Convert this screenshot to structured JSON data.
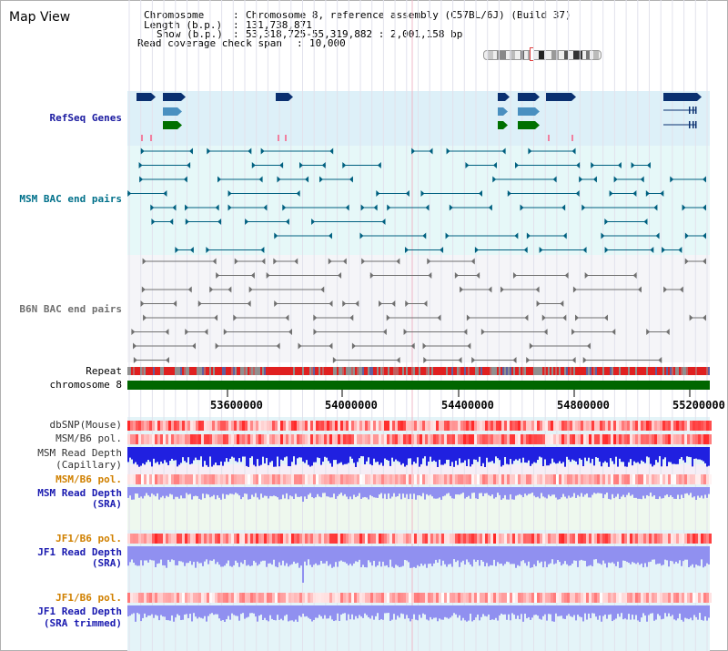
{
  "window": {
    "title": "Map View"
  },
  "header": {
    "chromosome_key": "Chromosome",
    "chromosome_value": "Chromosome 8, reference assembly (C57BL/6J) (Build 37)",
    "length_key": "Length (b.p.)",
    "length_value": "131,738,871",
    "show_key": "Show (b.p.)",
    "show_value": "53,318,725-55,319,882 : 2,001,158 bp",
    "coverage_key": "Read coverage check span",
    "coverage_value": "10,000"
  },
  "tracks": {
    "refseq": "RefSeq Genes",
    "msm_bac": "MSM BAC end pairs",
    "b6n_bac": "B6N BAC end pairs",
    "repeat": "Repeat",
    "chromosome": "chromosome 8",
    "dbsnp": "dbSNP(Mouse)",
    "msm_b6_pol_1": "MSM/B6 pol.",
    "msm_read_depth_cap_1": "MSM Read Depth",
    "msm_read_depth_cap_2": "(Capillary)",
    "msm_b6_pol_2": "MSM/B6 pol.",
    "msm_read_depth_sra_1": "MSM Read Depth",
    "msm_read_depth_sra_2": "(SRA)",
    "jf1_b6_pol_1": "JF1/B6 pol.",
    "jf1_read_depth_sra_1": "JF1 Read Depth",
    "jf1_read_depth_sra_2": "(SRA)",
    "jf1_b6_pol_2": "JF1/B6 pol.",
    "jf1_read_depth_trim_1": "JF1 Read Depth",
    "jf1_read_depth_trim_2": "(SRA trimmed)"
  },
  "axis": {
    "ticks": [
      "53600000",
      "54000000",
      "54400000",
      "54800000",
      "55200000"
    ]
  },
  "colors": {
    "refseq_bg": "#ddf0f8",
    "msm_bg": "#e6f8f8",
    "b6n_bg": "#f5f5f8",
    "chromosome": "#006600",
    "gene_navy": "#0a3070",
    "gene_blue": "#4a90c0",
    "gene_green": "#007000",
    "msm_pair": "#006080",
    "b6n_pair": "#707070",
    "depth_blue": "#2020e0",
    "depth_lavender": "#9090f0"
  }
}
